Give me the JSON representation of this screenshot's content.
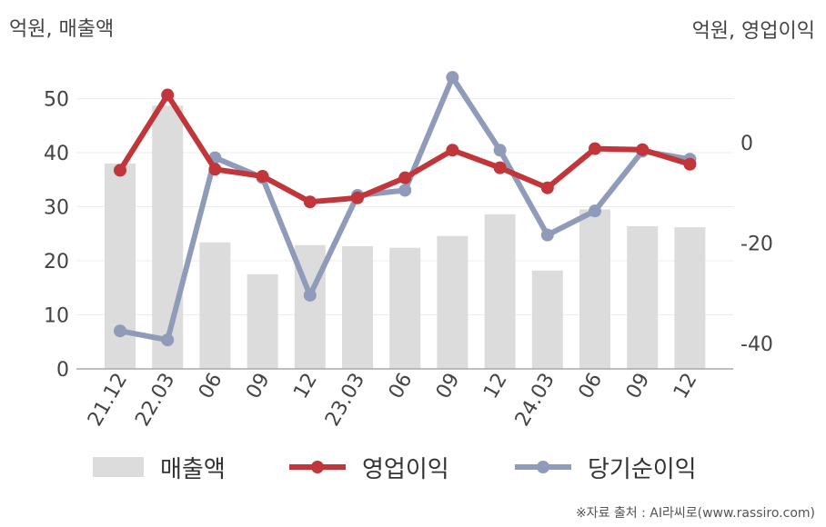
{
  "chart_data": {
    "type": "bar",
    "categories": [
      "21.12",
      "22.03",
      "06",
      "09",
      "12",
      "23.03",
      "06",
      "09",
      "12",
      "24.03",
      "06",
      "09",
      "12"
    ],
    "left_unit": "억원, 매출액",
    "right_unit": "억원, 영업이익",
    "ylim_left": [
      0,
      55
    ],
    "yticks_left": [
      "0",
      "10",
      "20",
      "30",
      "40",
      "50"
    ],
    "ylim_right": [
      -45,
      17.5
    ],
    "yticks_right": [
      "0",
      "-20",
      "-40"
    ],
    "grid": true,
    "legend_position": "bottom",
    "series": [
      {
        "name": "매출액",
        "type": "bar",
        "axis": "left",
        "color": "#dcdcdc",
        "values": [
          38.0,
          48.7,
          23.4,
          17.5,
          22.9,
          22.7,
          22.4,
          24.6,
          28.6,
          18.2,
          29.5,
          26.4,
          26.2
        ]
      },
      {
        "name": "영업이익",
        "type": "line",
        "axis": "right",
        "color": "#c0363a",
        "values": [
          -5.5,
          9.5,
          -5.3,
          -6.7,
          -11.8,
          -11.0,
          -7.0,
          -1.5,
          -5.0,
          -9.0,
          -1.2,
          -1.4,
          -4.3
        ]
      },
      {
        "name": "당기순이익",
        "type": "line",
        "axis": "right",
        "color": "#8f9bb8",
        "values": [
          -37.5,
          -39.3,
          -3.0,
          -7.0,
          -30.4,
          -10.5,
          -9.5,
          13.0,
          -1.5,
          -18.4,
          -13.6,
          -1.7,
          -3.3
        ]
      }
    ]
  },
  "legend": {
    "sales": "매출액",
    "op": "영업이익",
    "net": "당기순이익"
  },
  "source": "※자료 출처 : AI라씨로(www.rassiro.com)"
}
